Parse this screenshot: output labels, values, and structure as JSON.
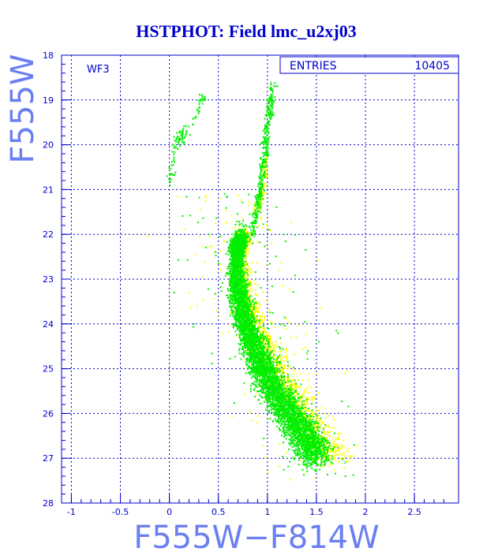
{
  "chart_data": {
    "type": "scatter",
    "title": "HSTPHOT: Field lmc_u2xj03",
    "panel_label": "WF3",
    "stats_label": "ENTRIES",
    "stats_value": "10405",
    "xlabel": "F555W−F814W",
    "ylabel": "F555W",
    "xlim": [
      -1.1,
      2.95
    ],
    "ylim": [
      28,
      18
    ],
    "y_inverted": true,
    "grid": true,
    "x_ticks": [
      {
        "value": -1,
        "label": "-1"
      },
      {
        "value": -0.5,
        "label": "-0.5"
      },
      {
        "value": 0,
        "label": "0"
      },
      {
        "value": 0.5,
        "label": "0.5"
      },
      {
        "value": 1,
        "label": "1"
      },
      {
        "value": 1.5,
        "label": "1.5"
      },
      {
        "value": 2,
        "label": "2"
      },
      {
        "value": 2.5,
        "label": "2.5"
      }
    ],
    "y_ticks": [
      {
        "value": 18,
        "label": "18"
      },
      {
        "value": 19,
        "label": "19"
      },
      {
        "value": 20,
        "label": "20"
      },
      {
        "value": 21,
        "label": "21"
      },
      {
        "value": 22,
        "label": "22"
      },
      {
        "value": 23,
        "label": "23"
      },
      {
        "value": 24,
        "label": "24"
      },
      {
        "value": 25,
        "label": "25"
      },
      {
        "value": 26,
        "label": "26"
      },
      {
        "value": 27,
        "label": "27"
      },
      {
        "value": 28,
        "label": "28"
      }
    ],
    "series": [
      {
        "color": "#00ee00",
        "ridge": [
          [
            0.72,
            22.0
          ],
          [
            0.68,
            22.5
          ],
          [
            0.68,
            23.0
          ],
          [
            0.72,
            23.5
          ],
          [
            0.78,
            24.0
          ],
          [
            0.86,
            24.5
          ],
          [
            0.95,
            25.0
          ],
          [
            1.08,
            25.5
          ],
          [
            1.22,
            26.0
          ],
          [
            1.38,
            26.5
          ],
          [
            1.5,
            27.0
          ]
        ],
        "giant_branch": [
          [
            0.83,
            22.0
          ],
          [
            0.88,
            21.5
          ],
          [
            0.92,
            21.0
          ],
          [
            0.95,
            20.5
          ],
          [
            0.97,
            20.0
          ],
          [
            1.0,
            19.5
          ],
          [
            1.03,
            19.0
          ],
          [
            1.05,
            18.6
          ]
        ],
        "red_clump": [
          [
            0.65,
            22.3
          ],
          [
            0.75,
            22.1
          ]
        ],
        "blue_branch": [
          [
            0.0,
            20.8
          ],
          [
            0.05,
            20.0
          ],
          [
            0.1,
            19.8
          ],
          [
            0.2,
            19.6
          ],
          [
            0.3,
            19.2
          ],
          [
            0.35,
            18.9
          ]
        ]
      },
      {
        "color": "#ffff00",
        "ridge": [
          [
            0.75,
            22.0
          ],
          [
            0.72,
            22.5
          ],
          [
            0.74,
            23.0
          ],
          [
            0.8,
            23.5
          ],
          [
            0.88,
            24.0
          ],
          [
            0.98,
            24.5
          ],
          [
            1.1,
            25.0
          ],
          [
            1.25,
            25.5
          ],
          [
            1.4,
            26.0
          ],
          [
            1.55,
            26.6
          ],
          [
            1.7,
            27.0
          ]
        ],
        "giant_branch": [
          [
            0.88,
            21.5
          ],
          [
            0.94,
            21.0
          ],
          [
            0.98,
            20.3
          ]
        ],
        "red_clump": [
          [
            0.68,
            22.3
          ],
          [
            0.78,
            22.0
          ]
        ]
      }
    ]
  }
}
